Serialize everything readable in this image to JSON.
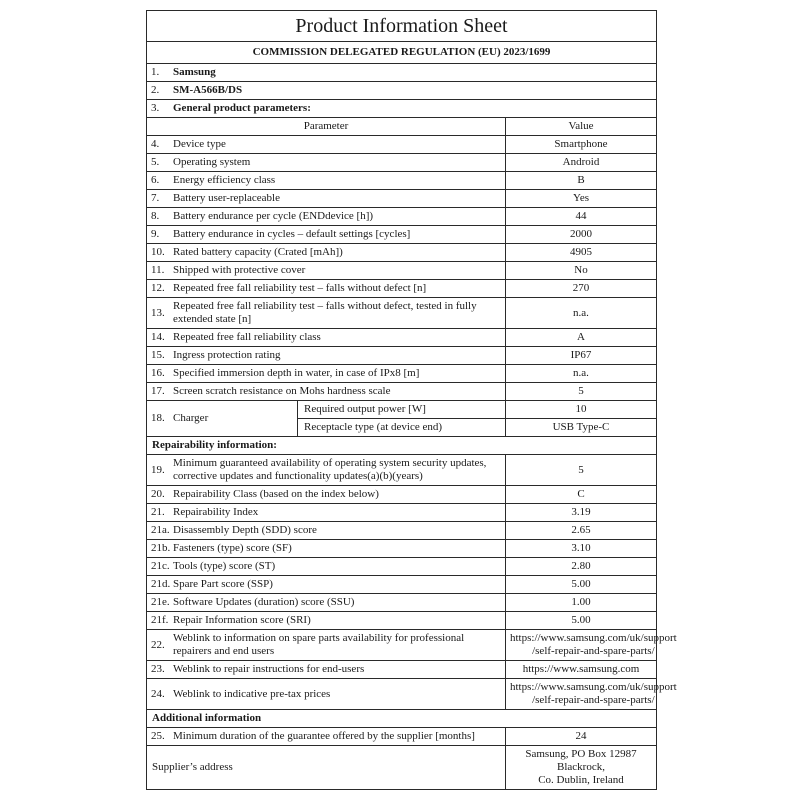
{
  "page": {
    "title": "Product Information Sheet",
    "regulation": "COMMISSION DELEGATED REGULATION (EU) 2023/1699"
  },
  "table": {
    "rows": [
      {
        "type": "full",
        "num": "1.",
        "label": "Samsung",
        "bold": true
      },
      {
        "type": "full",
        "num": "2.",
        "label": "SM-A566B/DS",
        "bold": true
      },
      {
        "type": "full",
        "num": "3.",
        "label": "General product parameters:",
        "bold": true
      },
      {
        "type": "colheader",
        "parameter": "Parameter",
        "value": "Value"
      },
      {
        "type": "param",
        "num": "4.",
        "label": "Device type",
        "value": "Smartphone"
      },
      {
        "type": "param",
        "num": "5.",
        "label": "Operating system",
        "value": "Android"
      },
      {
        "type": "param",
        "num": "6.",
        "label": "Energy efficiency class",
        "value": "B"
      },
      {
        "type": "param",
        "num": "7.",
        "label": "Battery user-replaceable",
        "value": "Yes"
      },
      {
        "type": "param",
        "num": "8.",
        "label": "Battery endurance per cycle (ENDdevice [h])",
        "value": "44"
      },
      {
        "type": "param",
        "num": "9.",
        "label": "Battery endurance in cycles – default settings [cycles]",
        "value": "2000"
      },
      {
        "type": "param",
        "num": "10.",
        "label": "Rated battery capacity (Crated [mAh])",
        "value": "4905"
      },
      {
        "type": "param",
        "num": "11.",
        "label": "Shipped with protective cover",
        "value": "No"
      },
      {
        "type": "param",
        "num": "12.",
        "label": "Repeated free fall reliability test – falls without defect [n]",
        "value": "270"
      },
      {
        "type": "param",
        "num": "13.",
        "label": "Repeated free fall reliability test – falls without defect, tested in fully extended state [n]",
        "value": "n.a."
      },
      {
        "type": "param",
        "num": "14.",
        "label": "Repeated free fall reliability class",
        "value": "A"
      },
      {
        "type": "param",
        "num": "15.",
        "label": "Ingress protection rating",
        "value": "IP67"
      },
      {
        "type": "param",
        "num": "16.",
        "label": "Specified immersion depth in water, in case of IPx8 [m]",
        "value": "n.a."
      },
      {
        "type": "param",
        "num": "17.",
        "label": "Screen scratch resistance on Mohs hardness scale",
        "value": "5"
      },
      {
        "type": "charger",
        "num": "18.",
        "label": "Charger",
        "subrows": [
          {
            "label": "Required output power [W]",
            "value": "10"
          },
          {
            "label": "Receptacle type (at device end)",
            "value": "USB Type-C"
          }
        ]
      },
      {
        "type": "section",
        "label": "Repairability information:"
      },
      {
        "type": "param",
        "num": "19.",
        "label": "Minimum guaranteed availability of operating system security updates, corrective updates and functionality updates(a)(b)(years)",
        "value": "5"
      },
      {
        "type": "param",
        "num": "20.",
        "label": "Repairability Class (based on the index below)",
        "value": "C"
      },
      {
        "type": "param",
        "num": "21.",
        "label": "Repairability Index",
        "value": "3.19"
      },
      {
        "type": "param",
        "num": "21a.",
        "label": "Disassembly Depth (SDD) score",
        "value": "2.65"
      },
      {
        "type": "param",
        "num": "21b.",
        "label": "Fasteners (type) score (SF)",
        "value": "3.10"
      },
      {
        "type": "param",
        "num": "21c.",
        "label": "Tools (type) score (ST)",
        "value": "2.80"
      },
      {
        "type": "param",
        "num": "21d.",
        "label": "Spare Part score (SSP)",
        "value": "5.00"
      },
      {
        "type": "param",
        "num": "21e.",
        "label": "Software Updates (duration) score (SSU)",
        "value": "1.00"
      },
      {
        "type": "param",
        "num": "21f.",
        "label": "Repair Information score (SRI)",
        "value": "5.00"
      },
      {
        "type": "param",
        "num": "22.",
        "label": "Weblink to information on spare parts availability for professional repairers and end users",
        "value": [
          "https://www.samsung.com/uk/support",
          "/self-repair-and-spare-parts/"
        ]
      },
      {
        "type": "param",
        "num": "23.",
        "label": "Weblink to repair instructions for end-users",
        "value": "https://www.samsung.com"
      },
      {
        "type": "param",
        "num": "24.",
        "label": "Weblink to indicative pre-tax prices",
        "value": [
          "https://www.samsung.com/uk/support",
          "/self-repair-and-spare-parts/"
        ]
      },
      {
        "type": "section",
        "label": "Additional information"
      },
      {
        "type": "param",
        "num": "25.",
        "label": "Minimum duration of the guarantee offered by the supplier [months]",
        "value": "24"
      },
      {
        "type": "labelrow",
        "label": "Supplier’s address",
        "value": [
          "Samsung, PO Box 12987 Blackrock,",
          "Co. Dublin, Ireland"
        ]
      }
    ]
  }
}
